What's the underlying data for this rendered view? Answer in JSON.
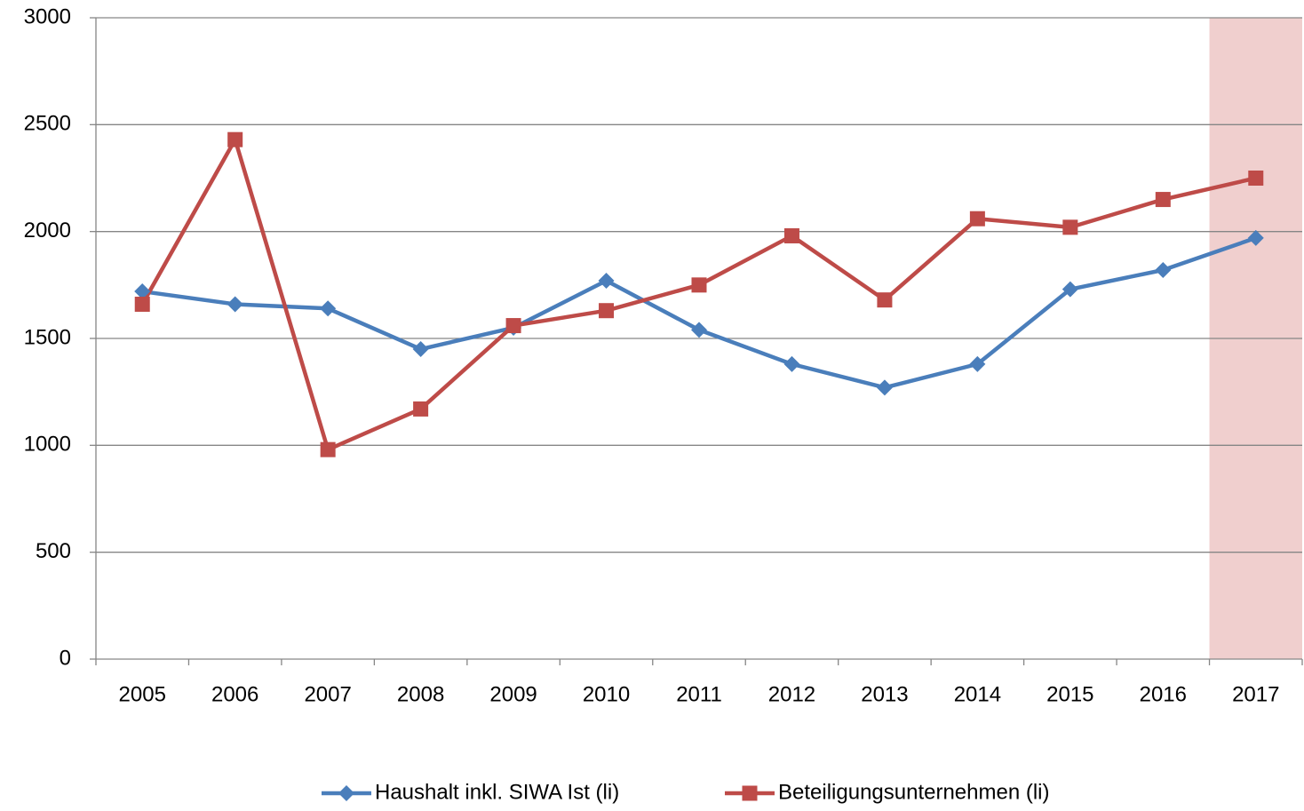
{
  "chart_data": {
    "type": "line",
    "categories": [
      "2005",
      "2006",
      "2007",
      "2008",
      "2009",
      "2010",
      "2011",
      "2012",
      "2013",
      "2014",
      "2015",
      "2016",
      "2017"
    ],
    "series": [
      {
        "name": "Haushalt inkl. SIWA Ist (li)",
        "color": "#4a7ebb",
        "marker": "diamond",
        "values": [
          1720,
          1660,
          1640,
          1450,
          1550,
          1770,
          1540,
          1380,
          1270,
          1380,
          1730,
          1820,
          1970
        ]
      },
      {
        "name": "Beteiligungsunternehmen (li)",
        "color": "#be4b48",
        "marker": "square",
        "values": [
          1660,
          2430,
          980,
          1170,
          1560,
          1630,
          1750,
          1980,
          1680,
          2060,
          2020,
          2150,
          2250
        ]
      }
    ],
    "ylim": [
      0,
      3000
    ],
    "yticks": [
      0,
      500,
      1000,
      1500,
      2000,
      2500,
      3000
    ],
    "grid": true,
    "highlight_categories": [
      "2017"
    ],
    "highlight_color": "#f0cfce",
    "legend": "bottom"
  }
}
